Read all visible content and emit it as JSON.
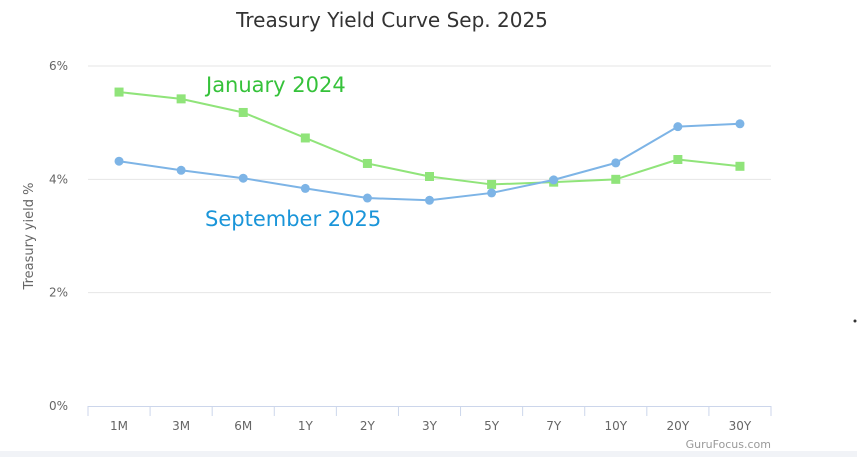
{
  "chart_data": {
    "type": "line",
    "title": "Treasury Yield Curve Sep. 2025",
    "ylabel": "Treasury yield %",
    "xlabel": "",
    "categories": [
      "1M",
      "3M",
      "6M",
      "1Y",
      "2Y",
      "3Y",
      "5Y",
      "7Y",
      "10Y",
      "20Y",
      "30Y"
    ],
    "ylim": [
      0,
      6
    ],
    "yticks": [
      0,
      2,
      4,
      6
    ],
    "ytick_labels": [
      "0%",
      "2%",
      "4%",
      "6%"
    ],
    "grid": true,
    "series": [
      {
        "name": "January 2024",
        "color": "#90e47a",
        "marker": "square",
        "values": [
          5.54,
          5.42,
          5.18,
          4.73,
          4.28,
          4.05,
          3.91,
          3.95,
          4.0,
          4.35,
          4.23
        ]
      },
      {
        "name": "September 2025",
        "color": "#7db4e6",
        "marker": "circle",
        "values": [
          4.32,
          4.16,
          4.02,
          3.84,
          3.67,
          3.63,
          3.76,
          3.99,
          4.29,
          4.93,
          4.98
        ]
      }
    ],
    "annotations": [
      {
        "text": "January 2024",
        "color": "#35c23a"
      },
      {
        "text": "September 2025",
        "color": "#1a95d9"
      }
    ],
    "credit": "GuruFocus.com"
  }
}
